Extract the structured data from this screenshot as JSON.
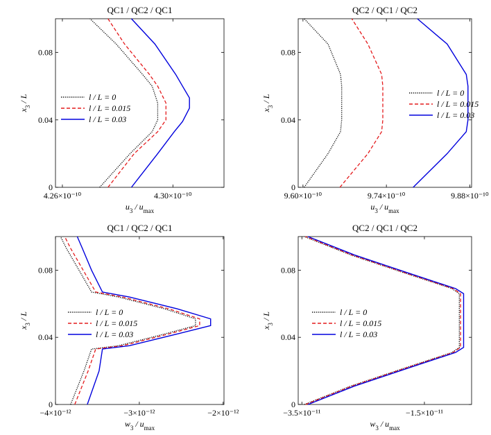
{
  "chart_data": [
    {
      "type": "line",
      "title": "QC1 / QC2 / QC1",
      "xlabel": "u₃ / u_max",
      "ylabel": "x₃ / L",
      "xlim": [
        4.2575e-10,
        4.3185e-10
      ],
      "ylim": [
        0,
        0.1
      ],
      "xticks": [
        {
          "v": 4.26e-10,
          "label": "4.26×10⁻¹⁰"
        },
        {
          "v": 4.3e-10,
          "label": "4.30×10⁻¹⁰"
        }
      ],
      "yticks": [
        {
          "v": 0,
          "label": "0"
        },
        {
          "v": 0.04,
          "label": "0.04"
        },
        {
          "v": 0.08,
          "label": "0.08"
        }
      ],
      "legend": "middle-left",
      "series": [
        {
          "name": "l / L = 0",
          "color": "#000000",
          "dash": "dot",
          "x": [
            4.2735e-10,
            4.2845e-10,
            4.2925e-10,
            4.2945e-10,
            4.2945e-10,
            4.2925e-10,
            4.289e-10,
            4.2795e-10,
            4.27e-10
          ],
          "y": [
            0,
            0.02,
            0.033,
            0.04,
            0.05,
            0.06,
            0.067,
            0.085,
            0.1
          ]
        },
        {
          "name": "l / L = 0.015",
          "color": "#e41a1c",
          "dash": "dash",
          "x": [
            4.2765e-10,
            4.286e-10,
            4.2945e-10,
            4.2975e-10,
            4.2975e-10,
            4.2945e-10,
            4.2915e-10,
            4.2825e-10,
            4.2765e-10
          ],
          "y": [
            0,
            0.02,
            0.033,
            0.04,
            0.05,
            0.06,
            0.067,
            0.085,
            0.1
          ]
        },
        {
          "name": "l / L = 0.03",
          "color": "#0000dd",
          "dash": "solid",
          "x": [
            4.285e-10,
            4.2945e-10,
            4.3005e-10,
            4.3035e-10,
            4.306e-10,
            4.306e-10,
            4.3035e-10,
            4.301e-10,
            4.2935e-10,
            4.285e-10
          ],
          "y": [
            0,
            0.02,
            0.033,
            0.039,
            0.047,
            0.053,
            0.06,
            0.067,
            0.085,
            0.1
          ]
        }
      ]
    },
    {
      "type": "line",
      "title": "QC2 / QC1 / QC2",
      "xlabel": "u₃ / u_max",
      "ylabel": "x₃ / L",
      "xlim": [
        9.592e-10,
        9.883e-10
      ],
      "ylim": [
        0,
        0.1
      ],
      "xticks": [
        {
          "v": 9.6e-10,
          "label": "9.60×10⁻¹⁰"
        },
        {
          "v": 9.74e-10,
          "label": "9.74×10⁻¹⁰"
        },
        {
          "v": 9.88e-10,
          "label": "9.88×10⁻¹⁰"
        }
      ],
      "yticks": [
        {
          "v": 0,
          "label": "0"
        },
        {
          "v": 0.04,
          "label": "0.04"
        },
        {
          "v": 0.08,
          "label": "0.08"
        }
      ],
      "legend": "middle-right",
      "series": [
        {
          "name": "l / L = 0",
          "color": "#000000",
          "dash": "dot",
          "x": [
            9.602e-10,
            9.642e-10,
            9.663e-10,
            9.665e-10,
            9.665e-10,
            9.663e-10,
            9.642e-10,
            9.602e-10
          ],
          "y": [
            0,
            0.02,
            0.033,
            0.04,
            0.06,
            0.067,
            0.085,
            0.1
          ]
        },
        {
          "name": "l / L = 0.015",
          "color": "#e41a1c",
          "dash": "dash",
          "x": [
            9.662e-10,
            9.709e-10,
            9.732e-10,
            9.734e-10,
            9.734e-10,
            9.732e-10,
            9.709e-10,
            9.682e-10
          ],
          "y": [
            0,
            0.02,
            0.033,
            0.04,
            0.06,
            0.067,
            0.085,
            0.1
          ]
        },
        {
          "name": "l / L = 0.03",
          "color": "#0000dd",
          "dash": "solid",
          "x": [
            9.785e-10,
            9.842e-10,
            9.874e-10,
            9.877e-10,
            9.877e-10,
            9.874e-10,
            9.842e-10,
            9.792e-10
          ],
          "y": [
            0,
            0.02,
            0.033,
            0.04,
            0.06,
            0.067,
            0.085,
            0.1
          ]
        }
      ]
    },
    {
      "type": "line",
      "title": "QC1 / QC2 / QC1",
      "xlabel": "w₃ / u_max",
      "ylabel": "x₃ / L",
      "xlim": [
        -4e-12,
        -1.99e-12
      ],
      "ylim": [
        0,
        0.1
      ],
      "xticks": [
        {
          "v": -4e-12,
          "label": "−4×10⁻¹²"
        },
        {
          "v": -3e-12,
          "label": "−3×10⁻¹²"
        },
        {
          "v": -2e-12,
          "label": "−2×10⁻¹²"
        }
      ],
      "yticks": [
        {
          "v": 0,
          "label": "0"
        },
        {
          "v": 0.04,
          "label": "0.04"
        },
        {
          "v": 0.08,
          "label": "0.08"
        }
      ],
      "legend": "middle-left",
      "series": [
        {
          "name": "l / L = 0",
          "color": "#000000",
          "dash": "dot",
          "x": [
            -3.82e-12,
            -3.66e-12,
            -3.57e-12,
            -3.25e-12,
            -2.7e-12,
            -2.33e-12,
            -2.33e-12,
            -2.7e-12,
            -3.25e-12,
            -3.57e-12,
            -3.72e-12,
            -3.87e-12,
            -3.94e-12
          ],
          "y": [
            0,
            0.02,
            0.033,
            0.035,
            0.042,
            0.047,
            0.051,
            0.057,
            0.064,
            0.067,
            0.08,
            0.093,
            0.1
          ]
        },
        {
          "name": "l / L = 0.015",
          "color": "#e41a1c",
          "dash": "dash",
          "x": [
            -3.77e-12,
            -3.61e-12,
            -3.52e-12,
            -3.2e-12,
            -2.65e-12,
            -2.28e-12,
            -2.28e-12,
            -2.65e-12,
            -3.2e-12,
            -3.52e-12,
            -3.67e-12,
            -3.82e-12,
            -3.89e-12
          ],
          "y": [
            0,
            0.02,
            0.033,
            0.035,
            0.042,
            0.047,
            0.051,
            0.057,
            0.064,
            0.067,
            0.08,
            0.093,
            0.1
          ]
        },
        {
          "name": "l / L = 0.03",
          "color": "#0000dd",
          "dash": "solid",
          "x": [
            -3.62e-12,
            -3.48e-12,
            -3.44e-12,
            -3.12e-12,
            -2.55e-12,
            -2.15e-12,
            -2.15e-12,
            -2.55e-12,
            -3.12e-12,
            -3.44e-12,
            -3.57e-12,
            -3.68e-12,
            -3.74e-12
          ],
          "y": [
            0,
            0.02,
            0.033,
            0.035,
            0.042,
            0.047,
            0.051,
            0.057,
            0.064,
            0.067,
            0.08,
            0.093,
            0.1
          ]
        }
      ]
    },
    {
      "type": "line",
      "title": "QC2 / QC1 / QC2",
      "xlabel": "w₃ / u_max",
      "ylabel": "x₃ / L",
      "xlim": [
        -3.56e-11,
        -7.3e-12
      ],
      "ylim": [
        0,
        0.1
      ],
      "xticks": [
        {
          "v": -3.5e-11,
          "label": "−3.5×10⁻¹¹"
        },
        {
          "v": -1.5e-11,
          "label": "−1.5×10⁻¹¹"
        }
      ],
      "yticks": [
        {
          "v": 0,
          "label": "0"
        },
        {
          "v": 0.04,
          "label": "0.04"
        },
        {
          "v": 0.08,
          "label": "0.08"
        }
      ],
      "legend": "middle-left",
      "series": [
        {
          "name": "l / L = 0",
          "color": "#000000",
          "dash": "dot",
          "x": [
            -3.46e-11,
            -2.7e-11,
            -1.8e-11,
            -1.05e-11,
            -9.3e-12,
            -9.3e-12,
            -1.05e-11,
            -1.8e-11,
            -2.7e-11,
            -3.46e-11
          ],
          "y": [
            0,
            0.011,
            0.022,
            0.031,
            0.034,
            0.066,
            0.069,
            0.078,
            0.089,
            0.1
          ]
        },
        {
          "name": "l / L = 0.015",
          "color": "#e41a1c",
          "dash": "dash",
          "x": [
            -3.44e-11,
            -2.68e-11,
            -1.78e-11,
            -1.03e-11,
            -9.1e-12,
            -9.1e-12,
            -1.03e-11,
            -1.78e-11,
            -2.68e-11,
            -3.44e-11
          ],
          "y": [
            0,
            0.011,
            0.022,
            0.031,
            0.034,
            0.066,
            0.069,
            0.078,
            0.089,
            0.1
          ]
        },
        {
          "name": "l / L = 0.03",
          "color": "#0000dd",
          "dash": "solid",
          "x": [
            -3.4e-11,
            -2.64e-11,
            -1.74e-11,
            -9.9e-12,
            -8.6e-12,
            -8.6e-12,
            -9.9e-12,
            -1.74e-11,
            -2.64e-11,
            -3.4e-11
          ],
          "y": [
            0,
            0.011,
            0.022,
            0.031,
            0.034,
            0.066,
            0.069,
            0.078,
            0.089,
            0.1
          ]
        }
      ]
    }
  ]
}
